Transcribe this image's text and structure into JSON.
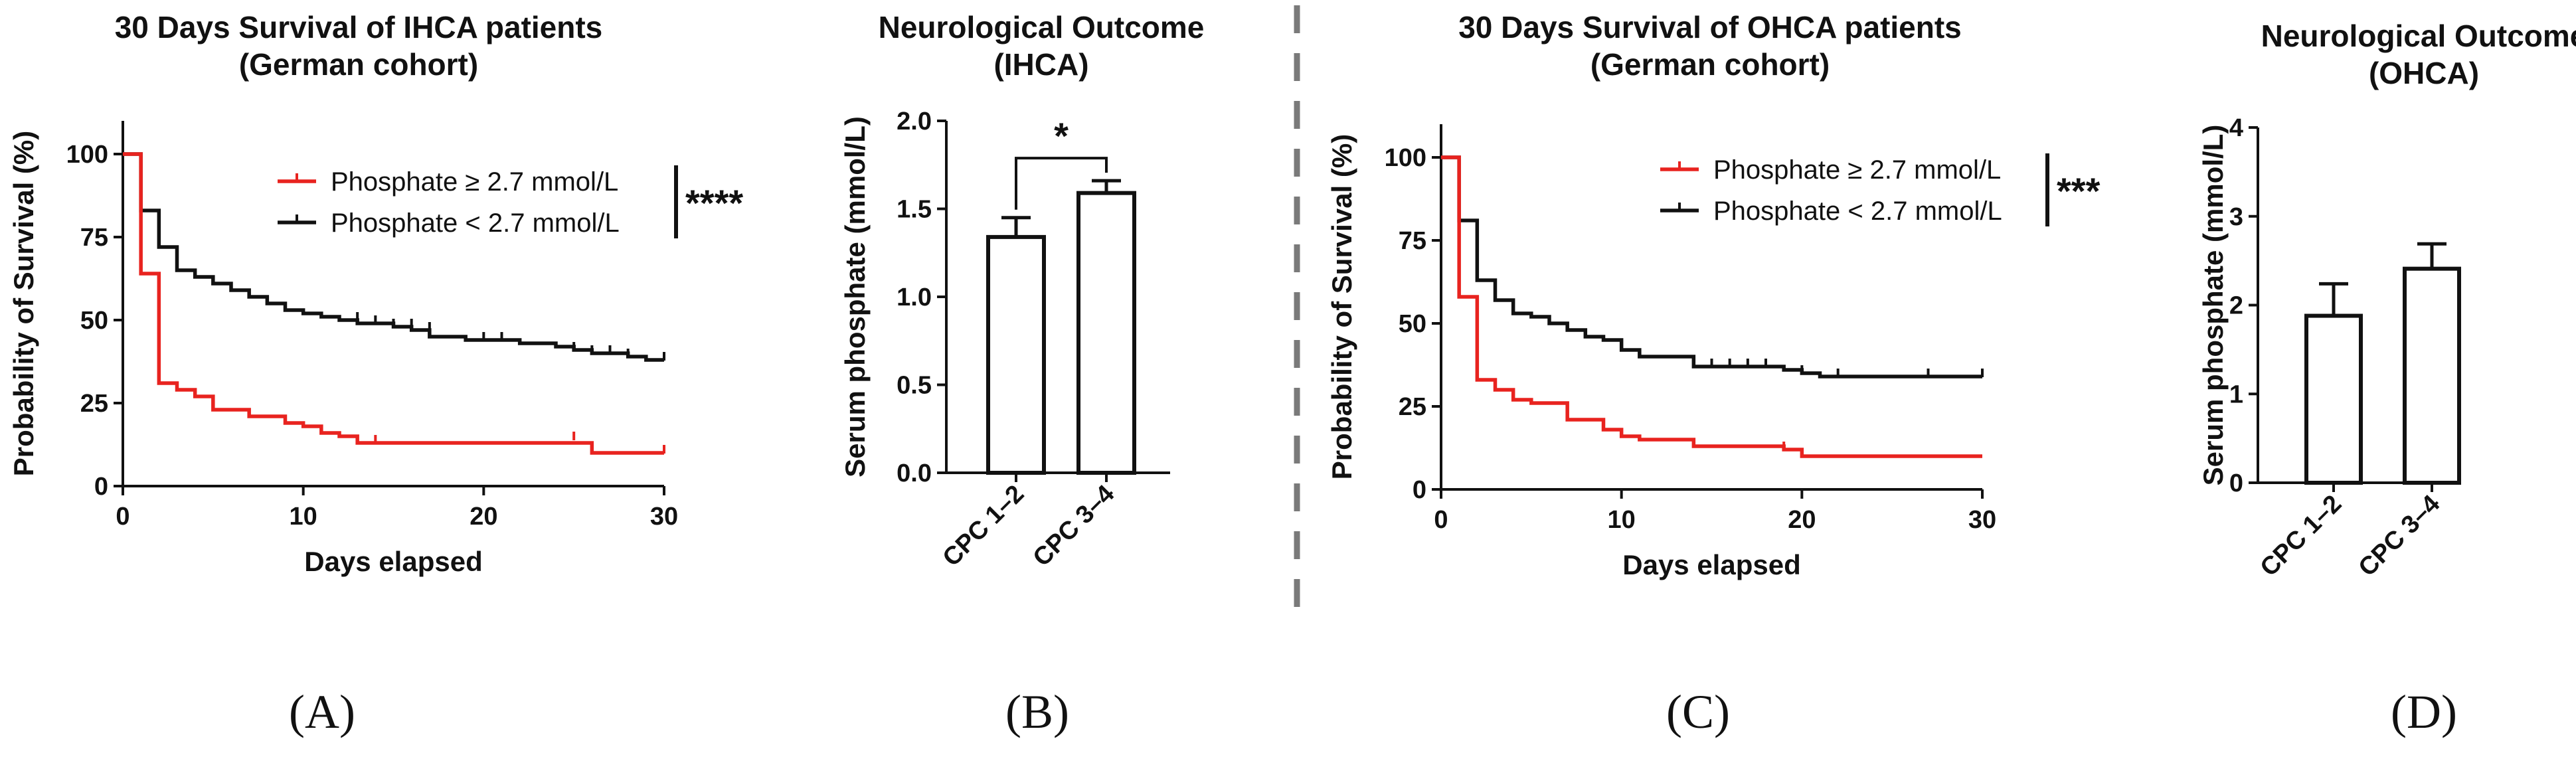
{
  "panels": {
    "A": {
      "label": "(A)",
      "chart_data": {
        "type": "line",
        "subtype": "kaplan-meier",
        "title": [
          "30 Days Survival of IHCA patients",
          "(German cohort)"
        ],
        "xlabel": "Days elapsed",
        "ylabel": "Probability of Survival (%)",
        "xlim": [
          0,
          30
        ],
        "ylim": [
          0,
          110
        ],
        "xticks": [
          0,
          10,
          20,
          30
        ],
        "yticks": [
          0,
          25,
          50,
          75,
          100
        ],
        "significance": "****",
        "series": [
          {
            "name": "Phosphate ≥ 2.7 mmol/L",
            "color": "#e8231f",
            "steps": [
              [
                0,
                100
              ],
              [
                1,
                64
              ],
              [
                2,
                31
              ],
              [
                3,
                29
              ],
              [
                4,
                27
              ],
              [
                5,
                23
              ],
              [
                7,
                21
              ],
              [
                9,
                19
              ],
              [
                10,
                18
              ],
              [
                11,
                16
              ],
              [
                12,
                15
              ],
              [
                13,
                13
              ],
              [
                26,
                10
              ],
              [
                30,
                10
              ]
            ],
            "censored": [
              [
                14,
                13
              ],
              [
                25,
                14
              ],
              [
                30,
                10
              ]
            ]
          },
          {
            "name": "Phosphate < 2.7 mmol/L",
            "color": "#111111",
            "steps": [
              [
                0,
                100
              ],
              [
                1,
                83
              ],
              [
                2,
                72
              ],
              [
                3,
                65
              ],
              [
                4,
                63
              ],
              [
                5,
                61
              ],
              [
                6,
                59
              ],
              [
                7,
                57
              ],
              [
                8,
                55
              ],
              [
                9,
                53
              ],
              [
                10,
                52
              ],
              [
                11,
                51
              ],
              [
                12,
                50
              ],
              [
                13,
                49
              ],
              [
                15,
                48
              ],
              [
                16,
                47
              ],
              [
                17,
                45
              ],
              [
                19,
                44
              ],
              [
                22,
                43
              ],
              [
                24,
                42
              ],
              [
                25,
                41
              ],
              [
                26,
                40
              ],
              [
                28,
                39
              ],
              [
                29,
                38
              ],
              [
                30,
                38
              ]
            ],
            "censored": [
              [
                13,
                50
              ],
              [
                14,
                49
              ],
              [
                15,
                48
              ],
              [
                16,
                48
              ],
              [
                17,
                47
              ],
              [
                20,
                44
              ],
              [
                21,
                44
              ],
              [
                25,
                41
              ],
              [
                26,
                40
              ],
              [
                27,
                40
              ],
              [
                28,
                39
              ],
              [
                30,
                38
              ]
            ]
          }
        ]
      }
    },
    "B": {
      "label": "(B)",
      "chart_data": {
        "type": "bar",
        "title": [
          "Neurological Outcome",
          "(IHCA)"
        ],
        "xlabel": "",
        "ylabel": "Serum phosphate (mmol/L)",
        "ylim": [
          0,
          2.0
        ],
        "yticks": [
          "0.0",
          "0.5",
          "1.0",
          "1.5",
          "2.0"
        ],
        "categories": [
          "CPC 1–2",
          "CPC 3–4"
        ],
        "values": [
          1.34,
          1.59
        ],
        "errors": [
          0.11,
          0.07
        ],
        "significance": "*"
      }
    },
    "C": {
      "label": "(C)",
      "chart_data": {
        "type": "line",
        "subtype": "kaplan-meier",
        "title": [
          "30 Days Survival of OHCA patients",
          "(German cohort)"
        ],
        "xlabel": "Days elapsed",
        "ylabel": "Probability of Survival (%)",
        "xlim": [
          0,
          30
        ],
        "ylim": [
          0,
          110
        ],
        "xticks": [
          0,
          10,
          20,
          30
        ],
        "yticks": [
          0,
          25,
          50,
          75,
          100
        ],
        "significance": "***",
        "series": [
          {
            "name": "Phosphate ≥ 2.7 mmol/L",
            "color": "#e8231f",
            "steps": [
              [
                0,
                100
              ],
              [
                1,
                58
              ],
              [
                2,
                33
              ],
              [
                3,
                30
              ],
              [
                4,
                27
              ],
              [
                5,
                26
              ],
              [
                7,
                21
              ],
              [
                9,
                18
              ],
              [
                10,
                16
              ],
              [
                11,
                15
              ],
              [
                14,
                13
              ],
              [
                19,
                12
              ],
              [
                20,
                10
              ],
              [
                30,
                10
              ]
            ],
            "censored": [
              [
                19,
                12
              ]
            ]
          },
          {
            "name": "Phosphate < 2.7 mmol/L",
            "color": "#111111",
            "steps": [
              [
                0,
                100
              ],
              [
                1,
                81
              ],
              [
                2,
                63
              ],
              [
                3,
                57
              ],
              [
                4,
                53
              ],
              [
                5,
                52
              ],
              [
                6,
                50
              ],
              [
                7,
                48
              ],
              [
                8,
                46
              ],
              [
                9,
                45
              ],
              [
                10,
                42
              ],
              [
                11,
                40
              ],
              [
                14,
                37
              ],
              [
                19,
                36
              ],
              [
                20,
                35
              ],
              [
                21,
                34
              ],
              [
                30,
                34
              ]
            ],
            "censored": [
              [
                15,
                37
              ],
              [
                16,
                37
              ],
              [
                17,
                37
              ],
              [
                18,
                37
              ],
              [
                20,
                35
              ],
              [
                22,
                34
              ],
              [
                27,
                34
              ],
              [
                30,
                34
              ]
            ]
          }
        ]
      }
    },
    "D": {
      "label": "(D)",
      "chart_data": {
        "type": "bar",
        "title": [
          "Neurological Outcome",
          "(OHCA)"
        ],
        "xlabel": "",
        "ylabel": "Serum phosphate (mmol/L)",
        "ylim": [
          0,
          4
        ],
        "yticks": [
          "0",
          "1",
          "2",
          "3",
          "4"
        ],
        "categories": [
          "CPC 1–2",
          "CPC 3–4"
        ],
        "values": [
          1.88,
          2.41
        ],
        "errors": [
          0.36,
          0.28
        ],
        "significance": ""
      }
    }
  },
  "colors": {
    "red": "#e8231f",
    "black": "#111111",
    "divider": "#7a7a7a"
  }
}
